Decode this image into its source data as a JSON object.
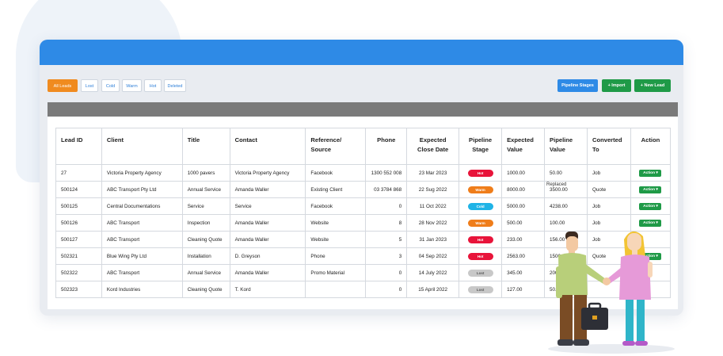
{
  "filters": [
    {
      "label": "All Leads",
      "active": true
    },
    {
      "label": "Lost"
    },
    {
      "label": "Cold"
    },
    {
      "label": "Warm"
    },
    {
      "label": "Hot"
    },
    {
      "label": "Deleted"
    }
  ],
  "toolbar": {
    "pipeline_label": "Pipeline Stages",
    "import_label": "+ Import",
    "new_label": "+ New Lead"
  },
  "table": {
    "headers": [
      "Lead ID",
      "Client",
      "Title",
      "Contact",
      "Reference/ Source",
      "Phone",
      "Expected Close Date",
      "Pipeline Stage",
      "Expected Value",
      "Pipeline Value",
      "Converted To",
      "Action"
    ],
    "rows": [
      {
        "id": "27",
        "client": "Victoria Property Agency",
        "title": "1000 pavers",
        "contact": "Victoria Property Agency",
        "source": "Facebook",
        "phone": "1300 552 008",
        "close": "23 Mar 2023",
        "stage": "Hot",
        "expected": "1000.00",
        "pipeline": "50.00",
        "converted": "Job",
        "action": "Action"
      },
      {
        "id": "500124",
        "client": "ABC Transport Pty Ltd",
        "title": "Annual Service",
        "contact": "Amanda Waller",
        "source": "Existing Client",
        "phone": "03 3784 868",
        "close": "22 Sug 2022",
        "stage": "Warm",
        "expected": "8000.00",
        "pipeline": "3500.00",
        "converted": "Quote",
        "action": "Action"
      },
      {
        "id": "500125",
        "client": "Central Documentations",
        "title": "Service",
        "contact": "Service",
        "source": "Facebook",
        "phone": "0",
        "close": "11 Oct 2022",
        "stage": "Cold",
        "expected": "5000.00",
        "pipeline": "4238.00",
        "converted": "Job",
        "action": "Action"
      },
      {
        "id": "500126",
        "client": "ABC Transport",
        "title": "Inspection",
        "contact": "Amanda Waller",
        "source": "Website",
        "phone": "8",
        "close": "28 Nov 2022",
        "stage": "Warm",
        "expected": "500.00",
        "pipeline": "100.00",
        "converted": "Job",
        "action": "Action"
      },
      {
        "id": "500127",
        "client": "ABC Transport",
        "title": "Cleaning Quote",
        "contact": "Amanda Waller",
        "source": "Website",
        "phone": "5",
        "close": "31 Jan 2023",
        "stage": "Hot",
        "expected": "233.00",
        "pipeline": "156.00",
        "converted": "Job",
        "action": ""
      },
      {
        "id": "502321",
        "client": "Blue Wing Pty Ltd",
        "title": "Installation",
        "contact": "D. Greyson",
        "source": "Phone",
        "phone": "3",
        "close": "04 Sep 2022",
        "stage": "Hot",
        "expected": "2563.00",
        "pipeline": "1500.00",
        "converted": "Quote",
        "action": "Action"
      },
      {
        "id": "502322",
        "client": "ABC Transport",
        "title": "Annual Service",
        "contact": "Amanda Waller",
        "source": "Promo Material",
        "phone": "0",
        "close": "14 July 2022",
        "stage": "Lost",
        "expected": "345.00",
        "pipeline": "200.0",
        "converted": "",
        "action": ""
      },
      {
        "id": "502323",
        "client": "Kord Industries",
        "title": "Cleaning Quote",
        "contact": "T. Kord",
        "source": "",
        "phone": "0",
        "close": "15 April 2022",
        "stage": "Lost",
        "expected": "127.00",
        "pipeline": "50.00",
        "converted": "",
        "action": ""
      }
    ]
  },
  "ghost_text": "Replaced",
  "colors": {
    "hot": "#e8143a",
    "warm": "#ef7d1a",
    "cold": "#1fb3e6",
    "lost": "#c8c8c8",
    "action": "#1f9a47",
    "blue": "#2e8ae6",
    "green": "#1f9a47",
    "orange": "#f08b1f"
  },
  "illustration": {
    "icons": [
      "man-figure-icon",
      "woman-figure-icon",
      "briefcase-icon"
    ]
  }
}
